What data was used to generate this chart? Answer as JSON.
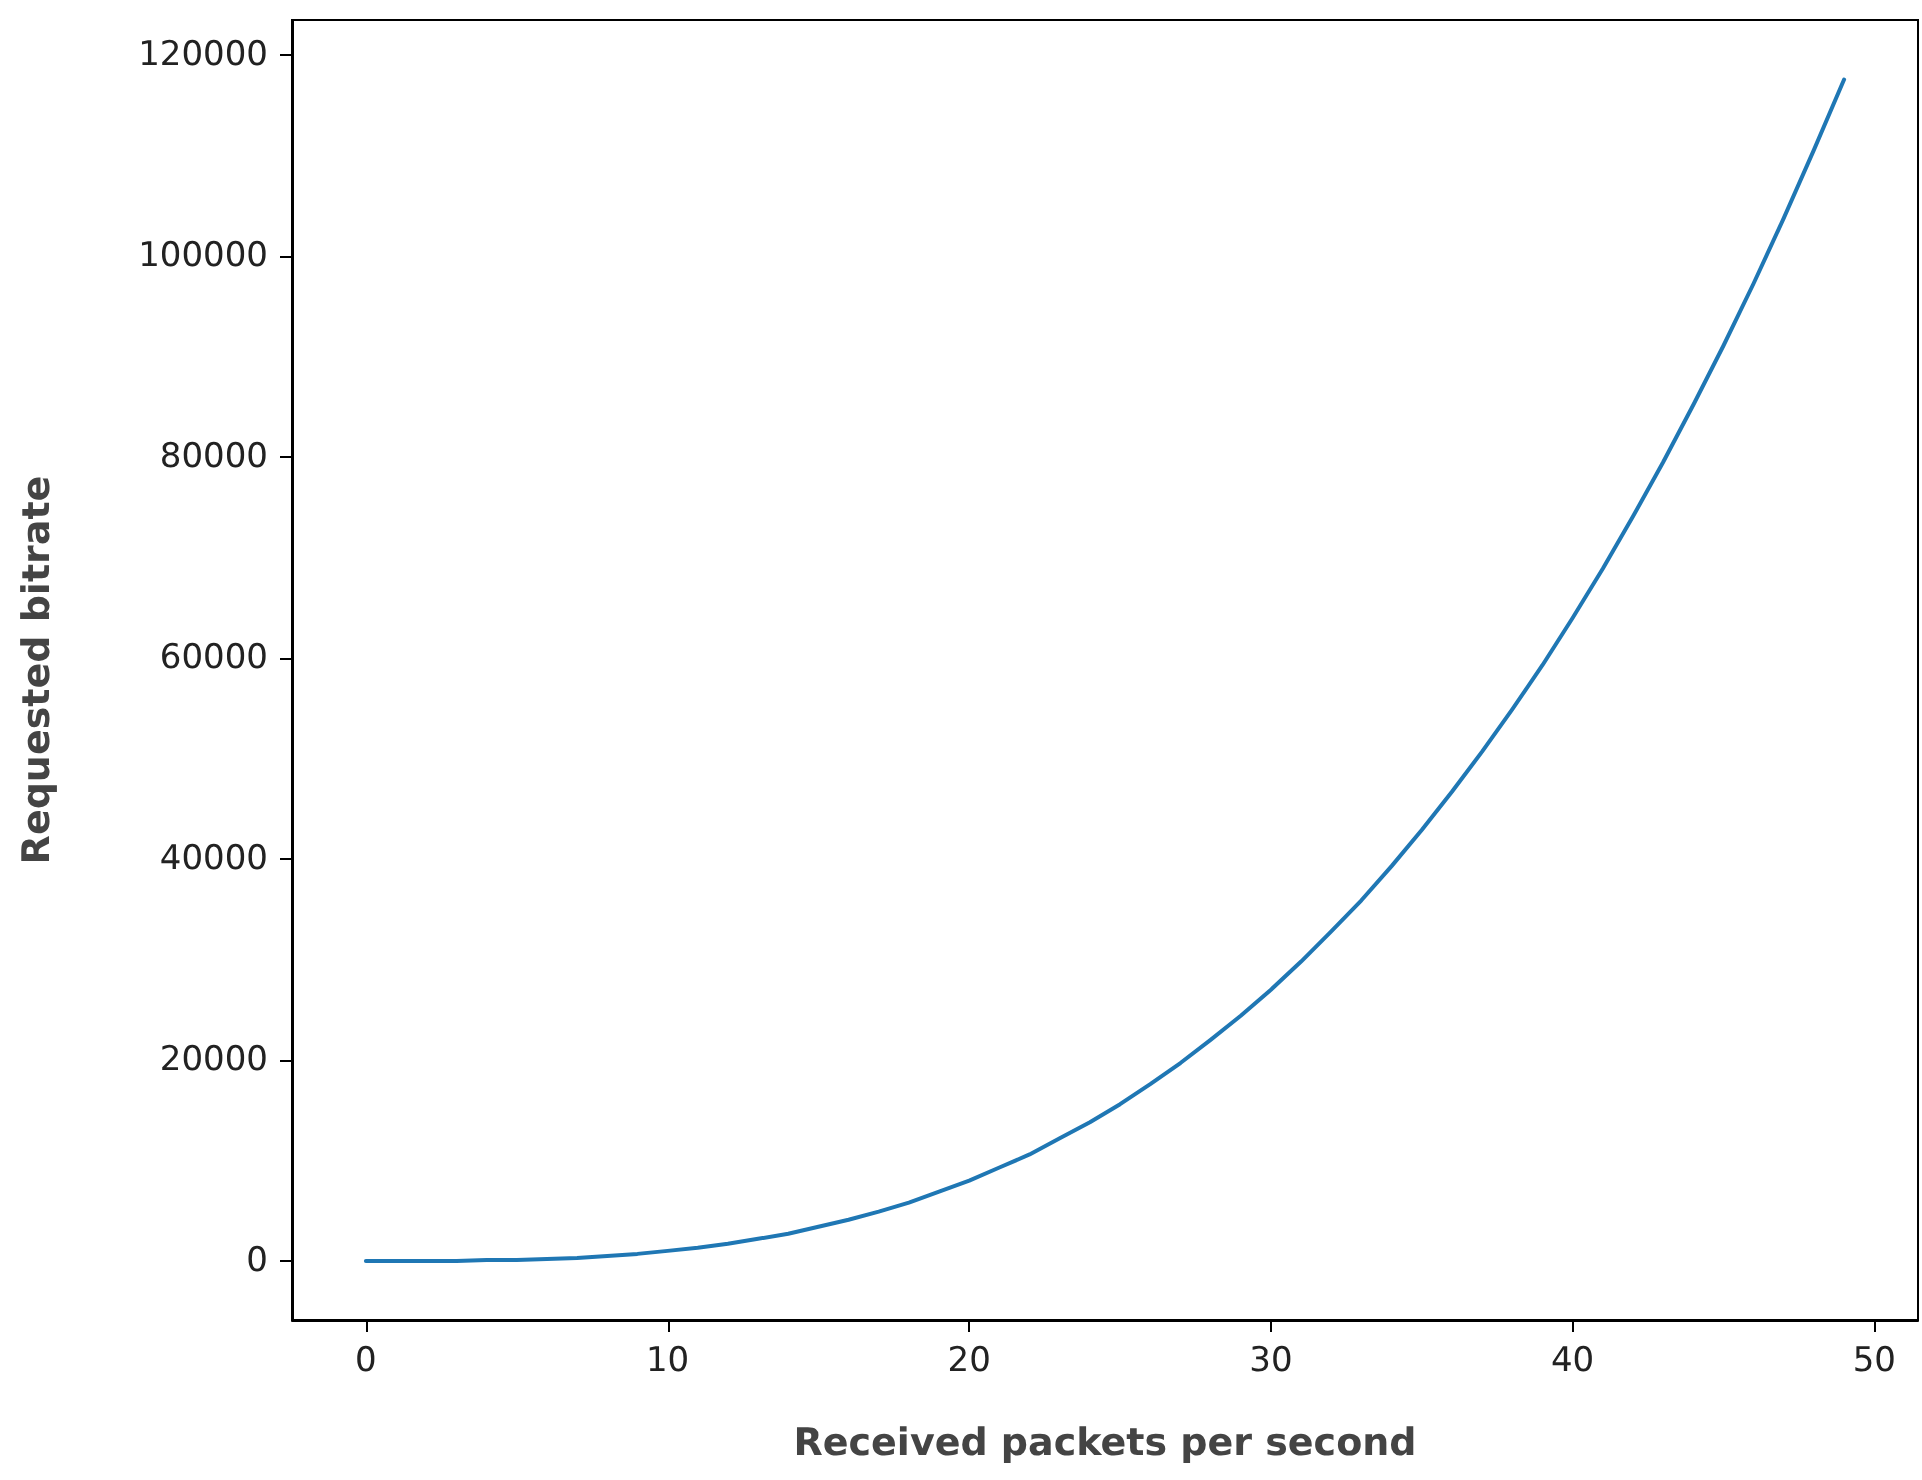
{
  "chart_data": {
    "type": "line",
    "xlabel": "Received packets per second",
    "ylabel": "Requested bitrate",
    "x": [
      0,
      1,
      2,
      3,
      4,
      5,
      6,
      7,
      8,
      9,
      10,
      11,
      12,
      13,
      14,
      15,
      16,
      17,
      18,
      19,
      20,
      21,
      22,
      23,
      24,
      25,
      26,
      27,
      28,
      29,
      30,
      31,
      32,
      33,
      34,
      35,
      36,
      37,
      38,
      39,
      40,
      41,
      42,
      43,
      44,
      45,
      46,
      47,
      48,
      49
    ],
    "series": [
      {
        "color": "#1f77b4",
        "values": [
          0,
          0,
          0,
          0,
          100,
          100,
          200,
          300,
          500,
          700,
          1000,
          1300,
          1700,
          2200,
          2700,
          3400,
          4100,
          4900,
          5800,
          6900,
          8000,
          9300,
          10600,
          12200,
          13800,
          15600,
          17600,
          19700,
          22000,
          24400,
          27000,
          29800,
          32800,
          35900,
          39300,
          42900,
          46700,
          50700,
          54900,
          59300,
          64000,
          68900,
          74100,
          79500,
          85200,
          91100,
          97300,
          103800,
          110600,
          117600
        ]
      }
    ],
    "xlim": [
      -2.45,
      51.45
    ],
    "ylim": [
      -5882,
      123531
    ],
    "xticks": [
      0,
      10,
      20,
      30,
      40,
      50
    ],
    "yticks": [
      0,
      20000,
      40000,
      60000,
      80000,
      100000,
      120000
    ],
    "marker": "none",
    "line_style": "solid"
  }
}
